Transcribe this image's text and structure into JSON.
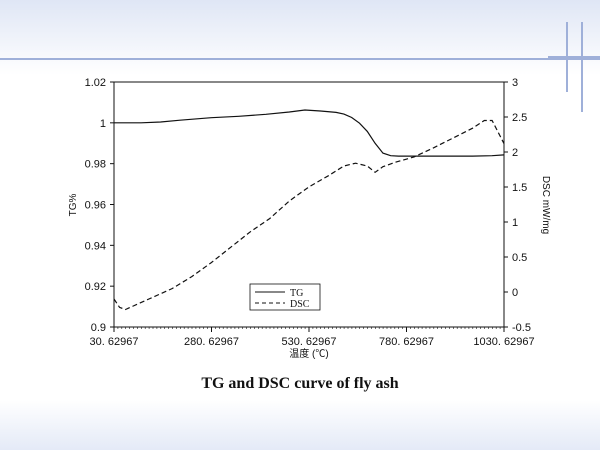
{
  "caption": "TG and DSC curve of fly ash",
  "colors": {
    "accent": "#9fb0d9",
    "line": "#111111"
  },
  "chart_data": {
    "type": "line",
    "title": "",
    "xlabel": "温度 (℃)",
    "ylabel_left": "TG%",
    "ylabel_right": "DSC mW/mg",
    "xlim": [
      30.62967,
      1030.62967
    ],
    "xticks": [
      "30. 62967",
      "280. 62967",
      "530. 62967",
      "780. 62967",
      "1030. 62967"
    ],
    "ylim_left": [
      0.9,
      1.02
    ],
    "yticks_left": [
      "0.9",
      "0.92",
      "0.94",
      "0.96",
      "0.98",
      "1",
      "1.02"
    ],
    "ylim_right": [
      -0.5,
      3
    ],
    "yticks_right": [
      "-0.5",
      "0",
      "0.5",
      "1",
      "1.5",
      "2",
      "2.5",
      "3"
    ],
    "grid": false,
    "legend_position": "bottom-center",
    "series": [
      {
        "name": "TG",
        "axis": "left",
        "style": "solid",
        "x": [
          30.6,
          100,
          150,
          200,
          280,
          350,
          420,
          480,
          520,
          560,
          600,
          620,
          640,
          660,
          680,
          700,
          720,
          740,
          760,
          780,
          800,
          900,
          950,
          1000,
          1030.6
        ],
        "y": [
          1.0,
          1.0,
          1.0004,
          1.0013,
          1.0025,
          1.0032,
          1.0042,
          1.0053,
          1.0063,
          1.0058,
          1.0051,
          1.0043,
          1.0026,
          0.9998,
          0.9958,
          0.99,
          0.9852,
          0.9839,
          0.9837,
          0.9837,
          0.9837,
          0.9837,
          0.9837,
          0.9839,
          0.9843
        ]
      },
      {
        "name": "DSC",
        "axis": "right",
        "style": "dashed",
        "x": [
          30.6,
          45,
          60,
          80,
          120,
          180,
          230,
          280,
          330,
          380,
          430,
          480,
          530,
          580,
          620,
          650,
          680,
          700,
          720,
          750,
          800,
          850,
          900,
          950,
          980,
          1000,
          1030.6
        ],
        "y": [
          -0.1,
          -0.22,
          -0.25,
          -0.2,
          -0.1,
          0.05,
          0.22,
          0.42,
          0.64,
          0.86,
          1.05,
          1.3,
          1.5,
          1.66,
          1.8,
          1.84,
          1.8,
          1.71,
          1.79,
          1.85,
          1.93,
          2.06,
          2.2,
          2.34,
          2.45,
          2.45,
          2.12
        ]
      }
    ]
  }
}
